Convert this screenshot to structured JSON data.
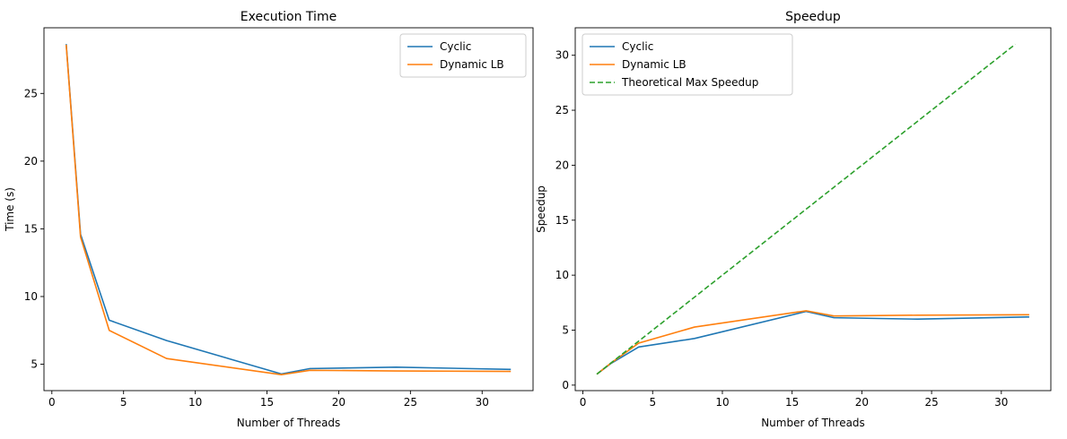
{
  "chart_data": [
    {
      "type": "line",
      "title": "Execution Time",
      "xlabel": "Number of Threads",
      "ylabel": "Time (s)",
      "xlim": [
        -0.55,
        33.55
      ],
      "ylim": [
        3.05,
        29.85
      ],
      "xticks": [
        0,
        5,
        10,
        15,
        20,
        25,
        30
      ],
      "yticks": [
        5,
        10,
        15,
        20,
        25
      ],
      "grid": false,
      "legend_position": "upper right",
      "series": [
        {
          "name": "Cyclic",
          "color": "#1f77b4",
          "dash": "solid",
          "x": [
            1,
            2,
            4,
            8,
            16,
            18,
            24,
            32
          ],
          "y": [
            28.65,
            14.6,
            8.25,
            6.75,
            4.28,
            4.68,
            4.78,
            4.62
          ]
        },
        {
          "name": "Dynamic LB",
          "color": "#ff7f0e",
          "dash": "solid",
          "x": [
            1,
            2,
            4,
            8,
            16,
            18,
            24,
            32
          ],
          "y": [
            28.6,
            14.4,
            7.5,
            5.42,
            4.23,
            4.55,
            4.5,
            4.47
          ]
        }
      ]
    },
    {
      "type": "line",
      "title": "Speedup",
      "xlabel": "Number of Threads",
      "ylabel": "Speedup",
      "xlim": [
        -0.55,
        33.55
      ],
      "ylim": [
        -0.5,
        32.5
      ],
      "xticks": [
        0,
        5,
        10,
        15,
        20,
        25,
        30
      ],
      "yticks": [
        0,
        5,
        10,
        15,
        20,
        25,
        30
      ],
      "grid": false,
      "legend_position": "upper left",
      "series": [
        {
          "name": "Cyclic",
          "color": "#1f77b4",
          "dash": "solid",
          "x": [
            1,
            2,
            4,
            8,
            16,
            18,
            24,
            32
          ],
          "y": [
            1.0,
            1.96,
            3.47,
            4.24,
            6.7,
            6.13,
            6.0,
            6.2
          ]
        },
        {
          "name": "Dynamic LB",
          "color": "#ff7f0e",
          "dash": "solid",
          "x": [
            1,
            2,
            4,
            8,
            16,
            18,
            24,
            32
          ],
          "y": [
            1.0,
            1.99,
            3.82,
            5.28,
            6.76,
            6.29,
            6.36,
            6.4
          ]
        },
        {
          "name": "Theoretical Max Speedup",
          "color": "#2ca02c",
          "dash": "dashed",
          "x": [
            1,
            31
          ],
          "y": [
            1,
            31
          ]
        }
      ]
    }
  ]
}
